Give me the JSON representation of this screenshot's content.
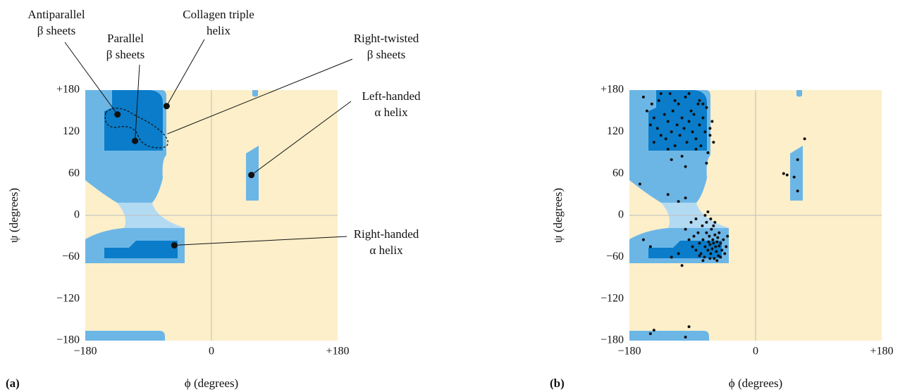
{
  "chart_data": [
    {
      "type": "regions",
      "panel_label": "(a)",
      "xlabel": "ϕ (degrees)",
      "ylabel": "ψ (degrees)",
      "xlim": [
        -180,
        180
      ],
      "ylim": [
        -180,
        180
      ],
      "xticks": [
        {
          "value": -180,
          "label": "−180"
        },
        0,
        {
          "value": 180,
          "label": "+180"
        }
      ],
      "yticks": [
        {
          "value": 180,
          "label": "+180"
        },
        120,
        60,
        0,
        {
          "value": -60,
          "label": "−60"
        },
        {
          "value": -120,
          "label": "−120"
        },
        {
          "value": -180,
          "label": "−180"
        }
      ],
      "zero_lines": true,
      "color": "#111111",
      "annotations": [
        {
          "text": [
            "Antiparallel",
            "β sheets"
          ],
          "x": -134,
          "y": 145
        },
        {
          "text": [
            "Parallel",
            "β sheets"
          ],
          "x": -109,
          "y": 107
        },
        {
          "text": [
            "Collagen triple",
            "helix"
          ],
          "x": -64,
          "y": 157
        },
        {
          "text": [
            "Right-twisted",
            "β sheets"
          ],
          "x": -63,
          "y": 117
        },
        {
          "text": [
            "Left-handed",
            "α helix"
          ],
          "x": 57,
          "y": 58
        },
        {
          "text": [
            "Right-handed",
            "α helix"
          ],
          "x": -53,
          "y": -43
        }
      ]
    },
    {
      "type": "scatter",
      "panel_label": "(b)",
      "xlabel": "ϕ (degrees)",
      "ylabel": "ψ (degrees)",
      "xlim": [
        -180,
        180
      ],
      "ylim": [
        -180,
        180
      ],
      "xticks": [
        {
          "value": -180,
          "label": "−180"
        },
        0,
        {
          "value": 180,
          "label": "+180"
        }
      ],
      "yticks": [
        {
          "value": 180,
          "label": "+180"
        },
        120,
        60,
        0,
        {
          "value": -60,
          "label": "−60"
        },
        {
          "value": -120,
          "label": "−120"
        },
        {
          "value": -180,
          "label": "−180"
        }
      ],
      "zero_lines": true,
      "color": "#111111",
      "x": [
        -160,
        -155,
        -150,
        -148,
        -145,
        -140,
        -138,
        -135,
        -130,
        -128,
        -125,
        -122,
        -120,
        -118,
        -115,
        -112,
        -110,
        -108,
        -105,
        -102,
        -100,
        -98,
        -95,
        -92,
        -90,
        -88,
        -85,
        -82,
        -80,
        -78,
        -75,
        -72,
        -70,
        -68,
        -65,
        -62,
        -60,
        -145,
        -135,
        -125,
        -115,
        -105,
        -95,
        -85,
        -75,
        -65,
        -120,
        -100,
        -80,
        -70,
        -100,
        -95,
        -92,
        -90,
        -88,
        -85,
        -82,
        -80,
        -78,
        -76,
        -75,
        -73,
        -72,
        -70,
        -68,
        -67,
        -66,
        -65,
        -64,
        -63,
        -62,
        -61,
        -60,
        -59,
        -58,
        -57,
        -56,
        -55,
        -54,
        -53,
        -52,
        -50,
        -48,
        -46,
        -44,
        -42,
        -40,
        -85,
        -80,
        -75,
        -70,
        -65,
        -60,
        -55,
        -50,
        -72,
        -68,
        -64,
        -58,
        -52,
        -165,
        -160,
        -120,
        -150,
        -125,
        -110,
        -100,
        -105,
        40,
        45,
        55,
        60,
        60,
        70,
        -150,
        -145,
        -100,
        -95,
        -110
      ],
      "y": [
        170,
        150,
        130,
        160,
        140,
        125,
        165,
        115,
        145,
        110,
        135,
        175,
        120,
        150,
        100,
        130,
        160,
        115,
        140,
        125,
        170,
        105,
        135,
        150,
        120,
        145,
        110,
        160,
        130,
        100,
        140,
        120,
        155,
        90,
        115,
        135,
        105,
        105,
        175,
        95,
        165,
        85,
        175,
        95,
        160,
        125,
        80,
        70,
        165,
        75,
        -20,
        -35,
        -10,
        -45,
        -30,
        -50,
        -25,
        -40,
        -55,
        -15,
        -35,
        -60,
        -45,
        -25,
        -50,
        -38,
        -30,
        -42,
        -55,
        -20,
        -48,
        -35,
        -40,
        -62,
        -28,
        -45,
        -52,
        -38,
        -32,
        -58,
        -44,
        -40,
        -50,
        -35,
        -55,
        -45,
        -30,
        -5,
        -58,
        -65,
        -10,
        -62,
        -15,
        -65,
        -60,
        0,
        5,
        -5,
        -10,
        -25,
        45,
        -35,
        -60,
        -45,
        30,
        20,
        25,
        -72,
        60,
        58,
        55,
        80,
        35,
        110,
        -170,
        -165,
        -175,
        -160,
        -55
      ]
    }
  ]
}
